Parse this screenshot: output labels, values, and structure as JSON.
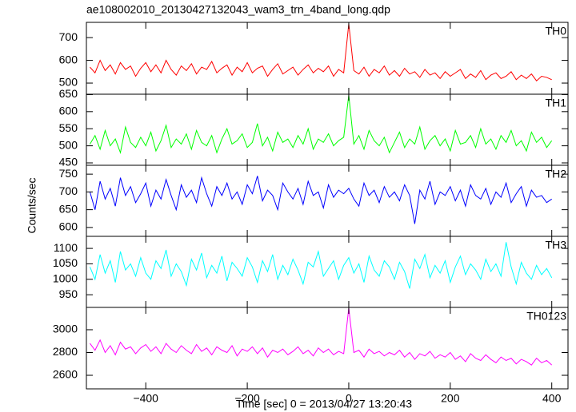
{
  "chart_data": [
    {
      "type": "line",
      "title": "ae108002010_20130427132043_wam3_trn_4band_long.qdp",
      "xlim": [
        -517,
        432
      ],
      "ylim": [
        451,
        767
      ],
      "yticks": [
        500,
        600,
        700
      ],
      "x": [
        -510,
        -500,
        -490,
        -480,
        -470,
        -460,
        -450,
        -440,
        -430,
        -420,
        -410,
        -400,
        -390,
        -380,
        -370,
        -360,
        -350,
        -340,
        -330,
        -320,
        -310,
        -300,
        -290,
        -280,
        -270,
        -260,
        -250,
        -240,
        -230,
        -220,
        -210,
        -200,
        -190,
        -180,
        -170,
        -160,
        -150,
        -140,
        -130,
        -120,
        -110,
        -100,
        -90,
        -80,
        -70,
        -60,
        -50,
        -40,
        -30,
        -20,
        -10,
        0,
        10,
        20,
        30,
        40,
        50,
        60,
        70,
        80,
        90,
        100,
        110,
        120,
        130,
        140,
        150,
        160,
        170,
        180,
        190,
        200,
        210,
        220,
        230,
        240,
        250,
        260,
        270,
        280,
        290,
        300,
        310,
        320,
        330,
        340,
        350,
        360,
        370,
        380,
        390,
        400
      ],
      "series": [
        {
          "name": "TH0",
          "color": "#ff0000",
          "values": [
            570,
            545,
            600,
            555,
            580,
            540,
            590,
            560,
            575,
            530,
            565,
            590,
            550,
            580,
            545,
            600,
            560,
            535,
            575,
            555,
            585,
            540,
            570,
            560,
            595,
            545,
            565,
            580,
            535,
            570,
            550,
            590,
            545,
            565,
            575,
            530,
            560,
            585,
            540,
            555,
            570,
            535,
            560,
            580,
            545,
            565,
            550,
            575,
            530,
            560,
            545,
            760,
            555,
            540,
            570,
            530,
            560,
            545,
            575,
            535,
            555,
            530,
            565,
            540,
            550,
            525,
            560,
            535,
            545,
            520,
            550,
            530,
            545,
            560,
            520,
            540,
            525,
            555,
            515,
            535,
            545,
            520,
            530,
            550,
            515,
            535,
            520,
            540,
            510,
            530,
            525,
            515
          ]
        }
      ]
    },
    {
      "type": "line",
      "xlim": [
        -517,
        432
      ],
      "ylim": [
        443,
        651
      ],
      "yticks": [
        450,
        500,
        550,
        600,
        650
      ],
      "x": [
        -510,
        -500,
        -490,
        -480,
        -470,
        -460,
        -450,
        -440,
        -430,
        -420,
        -410,
        -400,
        -390,
        -380,
        -370,
        -360,
        -350,
        -340,
        -330,
        -320,
        -310,
        -300,
        -290,
        -280,
        -270,
        -260,
        -250,
        -240,
        -230,
        -220,
        -210,
        -200,
        -190,
        -180,
        -170,
        -160,
        -150,
        -140,
        -130,
        -120,
        -110,
        -100,
        -90,
        -80,
        -70,
        -60,
        -50,
        -40,
        -30,
        -20,
        -10,
        0,
        10,
        20,
        30,
        40,
        50,
        60,
        70,
        80,
        90,
        100,
        110,
        120,
        130,
        140,
        150,
        160,
        170,
        180,
        190,
        200,
        210,
        220,
        230,
        240,
        250,
        260,
        270,
        280,
        290,
        300,
        310,
        320,
        330,
        340,
        350,
        360,
        370,
        380,
        390,
        400
      ],
      "series": [
        {
          "name": "TH1",
          "color": "#00ff00",
          "values": [
            505,
            530,
            490,
            545,
            500,
            520,
            480,
            555,
            510,
            495,
            525,
            500,
            540,
            485,
            515,
            560,
            495,
            520,
            505,
            535,
            490,
            545,
            510,
            500,
            530,
            480,
            520,
            550,
            505,
            515,
            535,
            495,
            510,
            565,
            500,
            525,
            485,
            540,
            510,
            520,
            495,
            530,
            505,
            550,
            490,
            520,
            510,
            535,
            500,
            515,
            525,
            648,
            505,
            530,
            490,
            545,
            515,
            500,
            525,
            480,
            510,
            540,
            495,
            520,
            505,
            555,
            490,
            515,
            530,
            500,
            520,
            485,
            545,
            505,
            510,
            530,
            495,
            550,
            505,
            520,
            490,
            530,
            510,
            545,
            500,
            515,
            485,
            540,
            510,
            525,
            495,
            515
          ]
        }
      ]
    },
    {
      "type": "line",
      "ylabel": "Counts/sec",
      "xlim": [
        -517,
        432
      ],
      "ylim": [
        575,
        775
      ],
      "yticks": [
        600,
        650,
        700,
        750
      ],
      "x": [
        -510,
        -500,
        -490,
        -480,
        -470,
        -460,
        -450,
        -440,
        -430,
        -420,
        -410,
        -400,
        -390,
        -380,
        -370,
        -360,
        -350,
        -340,
        -330,
        -320,
        -310,
        -300,
        -290,
        -280,
        -270,
        -260,
        -250,
        -240,
        -230,
        -220,
        -210,
        -200,
        -190,
        -180,
        -170,
        -160,
        -150,
        -140,
        -130,
        -120,
        -110,
        -100,
        -90,
        -80,
        -70,
        -60,
        -50,
        -40,
        -30,
        -20,
        -10,
        0,
        10,
        20,
        30,
        40,
        50,
        60,
        70,
        80,
        90,
        100,
        110,
        120,
        130,
        140,
        150,
        160,
        170,
        180,
        190,
        200,
        210,
        220,
        230,
        240,
        250,
        260,
        270,
        280,
        290,
        300,
        310,
        320,
        330,
        340,
        350,
        360,
        370,
        380,
        390,
        400
      ],
      "series": [
        {
          "name": "TH2",
          "color": "#0000ff",
          "values": [
            700,
            650,
            730,
            680,
            710,
            660,
            740,
            690,
            715,
            670,
            695,
            725,
            660,
            705,
            680,
            735,
            690,
            650,
            720,
            685,
            705,
            670,
            740,
            695,
            660,
            715,
            690,
            725,
            680,
            700,
            665,
            720,
            695,
            745,
            675,
            705,
            690,
            650,
            725,
            700,
            680,
            710,
            665,
            730,
            690,
            700,
            655,
            720,
            685,
            705,
            695,
            710,
            680,
            660,
            725,
            690,
            705,
            670,
            715,
            685,
            700,
            675,
            720,
            690,
            610,
            705,
            680,
            730,
            665,
            700,
            690,
            715,
            675,
            705,
            660,
            720,
            690,
            680,
            710,
            665,
            700,
            685,
            725,
            670,
            695,
            715,
            660,
            705,
            685,
            690,
            670,
            680
          ]
        }
      ]
    },
    {
      "type": "line",
      "xlim": [
        -517,
        432
      ],
      "ylim": [
        909,
        1139
      ],
      "yticks": [
        950,
        1000,
        1050,
        1100
      ],
      "x": [
        -510,
        -500,
        -490,
        -480,
        -470,
        -460,
        -450,
        -440,
        -430,
        -420,
        -410,
        -400,
        -390,
        -380,
        -370,
        -360,
        -350,
        -340,
        -330,
        -320,
        -310,
        -300,
        -290,
        -280,
        -270,
        -260,
        -250,
        -240,
        -230,
        -220,
        -210,
        -200,
        -190,
        -180,
        -170,
        -160,
        -150,
        -140,
        -130,
        -120,
        -110,
        -100,
        -90,
        -80,
        -70,
        -60,
        -50,
        -40,
        -30,
        -20,
        -10,
        0,
        10,
        20,
        30,
        40,
        50,
        60,
        70,
        80,
        90,
        100,
        110,
        120,
        130,
        140,
        150,
        160,
        170,
        180,
        190,
        200,
        210,
        220,
        230,
        240,
        250,
        260,
        270,
        280,
        290,
        300,
        310,
        320,
        330,
        340,
        350,
        360,
        370,
        380,
        390,
        400
      ],
      "series": [
        {
          "name": "TH3",
          "color": "#00ffff",
          "values": [
            1040,
            1000,
            1080,
            1020,
            1060,
            990,
            1090,
            1030,
            1050,
            1010,
            1070,
            1020,
            1000,
            1060,
            1035,
            1095,
            1010,
            1050,
            1025,
            980,
            1065,
            1030,
            1085,
            1005,
            1045,
            1020,
            1075,
            995,
            1055,
            1035,
            1010,
            1070,
            1040,
            990,
            1060,
            1025,
            1080,
            1000,
            1045,
            1015,
            1065,
            1030,
            985,
            1055,
            1040,
            1090,
            1010,
            1035,
            1060,
            1000,
            1045,
            1070,
            1020,
            1050,
            990,
            1075,
            1030,
            1010,
            1060,
            1040,
            1000,
            1055,
            1025,
            970,
            1065,
            1035,
            1080,
            1005,
            1045,
            1020,
            1060,
            990,
            1040,
            1075,
            1015,
            1050,
            1030,
            1000,
            1065,
            1025,
            1050,
            1010,
            1120,
            1040,
            985,
            1055,
            1020,
            1000,
            1045,
            1015,
            1035,
            1005
          ]
        }
      ]
    },
    {
      "type": "line",
      "xlabel": "Time [sec] 0 = 2013/04/27 13:20:43",
      "xlim": [
        -517,
        432
      ],
      "ylim": [
        2481,
        3196
      ],
      "yticks": [
        2600,
        2800,
        3000
      ],
      "xticks": [
        {
          "value": -400,
          "label": "−400"
        },
        {
          "value": -200,
          "label": "−200"
        },
        0,
        200,
        400
      ],
      "x": [
        -510,
        -500,
        -490,
        -480,
        -470,
        -460,
        -450,
        -440,
        -430,
        -420,
        -410,
        -400,
        -390,
        -380,
        -370,
        -360,
        -350,
        -340,
        -330,
        -320,
        -310,
        -300,
        -290,
        -280,
        -270,
        -260,
        -250,
        -240,
        -230,
        -220,
        -210,
        -200,
        -190,
        -180,
        -170,
        -160,
        -150,
        -140,
        -130,
        -120,
        -110,
        -100,
        -90,
        -80,
        -70,
        -60,
        -50,
        -40,
        -30,
        -20,
        -10,
        0,
        10,
        20,
        30,
        40,
        50,
        60,
        70,
        80,
        90,
        100,
        110,
        120,
        130,
        140,
        150,
        160,
        170,
        180,
        190,
        200,
        210,
        220,
        230,
        240,
        250,
        260,
        270,
        280,
        290,
        300,
        310,
        320,
        330,
        340,
        350,
        360,
        370,
        380,
        390,
        400
      ],
      "series": [
        {
          "name": "TH0123",
          "color": "#ff00ff",
          "values": [
            2880,
            2820,
            2910,
            2800,
            2860,
            2780,
            2890,
            2830,
            2850,
            2790,
            2840,
            2870,
            2810,
            2850,
            2790,
            2880,
            2830,
            2800,
            2860,
            2820,
            2790,
            2870,
            2810,
            2840,
            2780,
            2850,
            2820,
            2800,
            2860,
            2770,
            2830,
            2810,
            2850,
            2790,
            2840,
            2760,
            2820,
            2800,
            2830,
            2780,
            2810,
            2850,
            2790,
            2820,
            2770,
            2840,
            2800,
            2830,
            2780,
            2810,
            2790,
            3190,
            2800,
            2820,
            2760,
            2830,
            2790,
            2810,
            2770,
            2800,
            2780,
            2820,
            2760,
            2800,
            2740,
            2790,
            2770,
            2810,
            2750,
            2780,
            2760,
            2800,
            2740,
            2770,
            2720,
            2790,
            2750,
            2730,
            2780,
            2740,
            2710,
            2760,
            2730,
            2750,
            2700,
            2740,
            2720,
            2690,
            2750,
            2710,
            2730,
            2690
          ]
        }
      ]
    }
  ]
}
